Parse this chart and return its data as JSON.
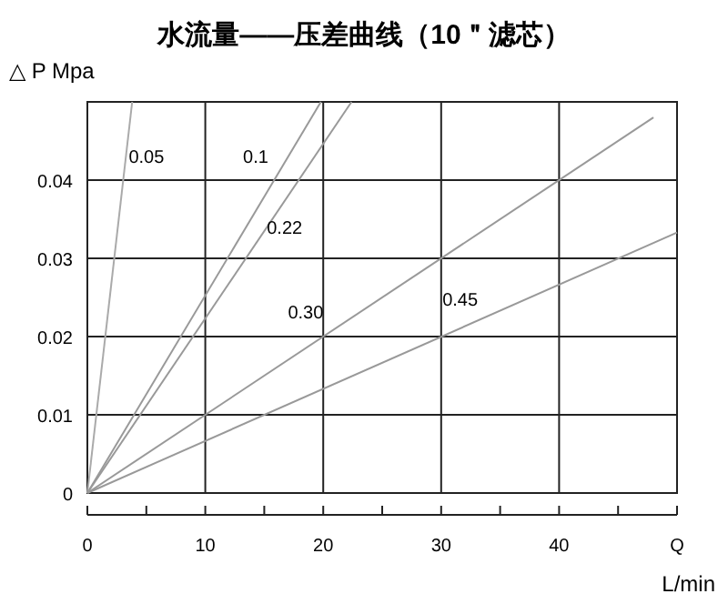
{
  "chart_data": {
    "type": "line",
    "title": "水流量——压差曲线（10＂滤芯）",
    "ylabel": "△  P Mpa",
    "xlabel": "L/min",
    "xlim": [
      0,
      50
    ],
    "ylim": [
      0,
      0.05
    ],
    "xticks": [
      0,
      {
        "value": 5,
        "label": null
      },
      10,
      {
        "value": 15,
        "label": null
      },
      20,
      {
        "value": 25,
        "label": null
      },
      30,
      {
        "value": 35,
        "label": null
      },
      40,
      {
        "value": 45,
        "label": null
      },
      {
        "value": 50,
        "label": "Q"
      }
    ],
    "yticks": [
      0,
      0.01,
      0.02,
      0.03,
      0.04
    ],
    "grid": true,
    "line_style": "solid",
    "series": [
      {
        "name": "0.05",
        "color": "#aaaaaa",
        "x": [
          0,
          3.8
        ],
        "values": [
          0,
          0.05
        ]
      },
      {
        "name": "0.1",
        "color": "#999999",
        "x": [
          0,
          19.8
        ],
        "values": [
          0,
          0.05
        ]
      },
      {
        "name": "0.22",
        "color": "#999999",
        "x": [
          0,
          22.4
        ],
        "values": [
          0,
          0.05
        ]
      },
      {
        "name": "0.30",
        "color": "#999999",
        "x": [
          0,
          48
        ],
        "values": [
          0,
          0.048
        ]
      },
      {
        "name": "0.45",
        "color": "#999999",
        "x": [
          0,
          50
        ],
        "values": [
          0,
          0.0333
        ]
      }
    ]
  }
}
